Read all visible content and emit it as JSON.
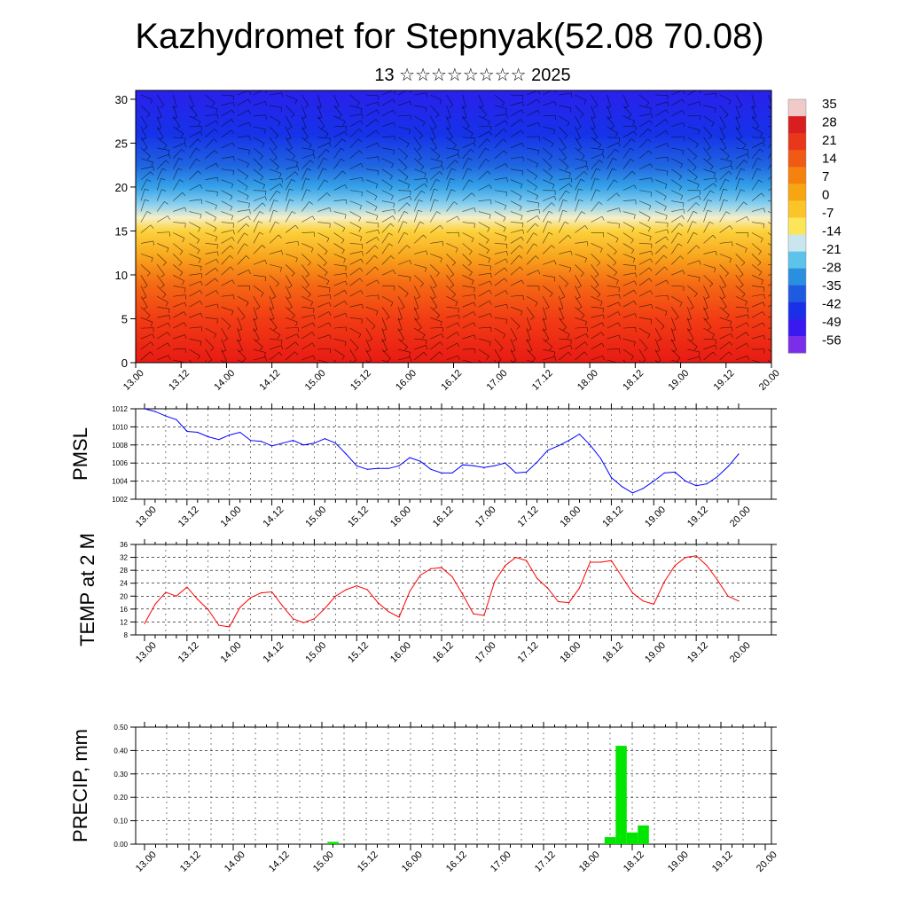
{
  "title": "Kazhydromet for Stepnyak(52.08 70.08)",
  "subtitle": "13 ☆☆☆☆☆☆☆☆ 2025",
  "time_labels": [
    "13.00",
    "13.12",
    "14.00",
    "14.12",
    "15.00",
    "15.12",
    "16.00",
    "16.12",
    "17.00",
    "17.12",
    "18.00",
    "18.12",
    "19.00",
    "19.12",
    "20.00"
  ],
  "chart_data": [
    {
      "type": "heatmap",
      "name": "cross-section",
      "y_ticks": [
        0,
        5,
        10,
        15,
        20,
        25,
        30
      ],
      "ylim": [
        0,
        31
      ],
      "colorbar_labels": [
        "35",
        "28",
        "21",
        "14",
        "7",
        "0",
        "-7",
        "-14",
        "-21",
        "-28",
        "-35",
        "-42",
        "-49",
        "-56"
      ],
      "colorbar_colors": [
        "#f2c9c9",
        "#d81e1e",
        "#e8371a",
        "#f05a14",
        "#f5820f",
        "#f8a513",
        "#fbc52a",
        "#fde55a",
        "#c9e6ef",
        "#5ec3ea",
        "#2b8fe0",
        "#1f5be0",
        "#1a2fe8",
        "#3a18f0",
        "#7a2ee8"
      ],
      "layers": [
        {
          "z": 0,
          "color": "#e81a14"
        },
        {
          "z": 5,
          "color": "#f23c14"
        },
        {
          "z": 9,
          "color": "#f56a14"
        },
        {
          "z": 12,
          "color": "#f8a51c"
        },
        {
          "z": 15,
          "color": "#fcd23c"
        },
        {
          "z": 16.5,
          "color": "#f5f0c8"
        },
        {
          "z": 18,
          "color": "#8cd0ee"
        },
        {
          "z": 20,
          "color": "#36a3e8"
        },
        {
          "z": 22.5,
          "color": "#1f64e0"
        },
        {
          "z": 26,
          "color": "#1632e8"
        },
        {
          "z": 31,
          "color": "#2a20ec"
        }
      ]
    },
    {
      "type": "line",
      "name": "pmsl",
      "ylabel": "PMSL",
      "ylim": [
        1002,
        1012
      ],
      "y_ticks": [
        1002,
        1004,
        1006,
        1008,
        1010,
        1012
      ],
      "color": "#0000ff",
      "x": [
        0,
        3,
        6,
        9,
        12,
        15,
        18,
        21,
        24,
        27,
        30,
        33,
        36,
        39,
        42,
        45,
        48,
        51,
        54,
        57,
        60,
        63,
        66,
        69,
        72,
        75,
        78,
        81,
        84,
        87,
        90,
        93,
        96,
        99,
        102,
        105,
        108,
        111,
        114,
        117,
        120,
        123,
        126,
        129,
        132,
        135,
        138,
        141,
        144,
        147,
        150,
        153,
        156,
        159,
        162,
        165,
        168
      ],
      "values": [
        1012,
        1011.7,
        1011.2,
        1010.8,
        1009.5,
        1009.4,
        1008.9,
        1008.6,
        1009.1,
        1009.4,
        1008.5,
        1008.4,
        1007.9,
        1008.2,
        1008.5,
        1008,
        1008.2,
        1008.7,
        1008.2,
        1007,
        1005.7,
        1005.3,
        1005.4,
        1005.4,
        1005.7,
        1006.6,
        1006.2,
        1005.3,
        1004.9,
        1004.9,
        1005.8,
        1005.7,
        1005.5,
        1005.7,
        1006,
        1004.9,
        1005,
        1006.1,
        1007.4,
        1007.9,
        1008.5,
        1009.2,
        1008,
        1006.5,
        1004.4,
        1003.4,
        1002.7,
        1003.2,
        1004,
        1004.9,
        1005,
        1004,
        1003.5,
        1003.7,
        1004.5,
        1005.6,
        1007
      ]
    },
    {
      "type": "line",
      "name": "temp2m",
      "ylabel": "TEMP at 2 M",
      "ylim": [
        8,
        36
      ],
      "y_ticks": [
        8,
        12,
        16,
        20,
        24,
        28,
        32,
        36
      ],
      "color": "#ff0000",
      "x": [
        0,
        3,
        6,
        9,
        12,
        15,
        18,
        21,
        24,
        27,
        30,
        33,
        36,
        39,
        42,
        45,
        48,
        51,
        54,
        57,
        60,
        63,
        66,
        69,
        72,
        75,
        78,
        81,
        84,
        87,
        90,
        93,
        96,
        99,
        102,
        105,
        108,
        111,
        114,
        117,
        120,
        123,
        126,
        129,
        132,
        135,
        138,
        141,
        144,
        147,
        150,
        153,
        156,
        159,
        162,
        165,
        168
      ],
      "values": [
        11.5,
        17.5,
        21.2,
        20,
        22.8,
        19,
        15.8,
        11,
        10.5,
        16.5,
        19.5,
        21,
        21.3,
        17,
        13,
        11.8,
        13,
        16.2,
        20,
        22,
        23.2,
        22,
        18,
        15.2,
        13.5,
        21.5,
        26.5,
        28.5,
        28.8,
        26,
        20.5,
        14.5,
        14,
        24.5,
        29.5,
        32,
        31,
        25.5,
        22.5,
        18.3,
        18,
        22.5,
        30.5,
        30.5,
        31,
        26,
        21,
        18.5,
        17.5,
        24.5,
        29.5,
        32,
        32.5,
        29.5,
        25,
        20,
        18.5
      ]
    },
    {
      "type": "bar",
      "name": "precip",
      "ylabel": "PRECIP, mm",
      "ylim": [
        0,
        0.5
      ],
      "y_ticks": [
        "0.00",
        "0.10",
        "0.20",
        "0.30",
        "0.40",
        "0.50"
      ],
      "color": "#00e600",
      "x": [
        51,
        126,
        129,
        132,
        135
      ],
      "values": [
        0.01,
        0.03,
        0.42,
        0.05,
        0.08
      ]
    }
  ]
}
